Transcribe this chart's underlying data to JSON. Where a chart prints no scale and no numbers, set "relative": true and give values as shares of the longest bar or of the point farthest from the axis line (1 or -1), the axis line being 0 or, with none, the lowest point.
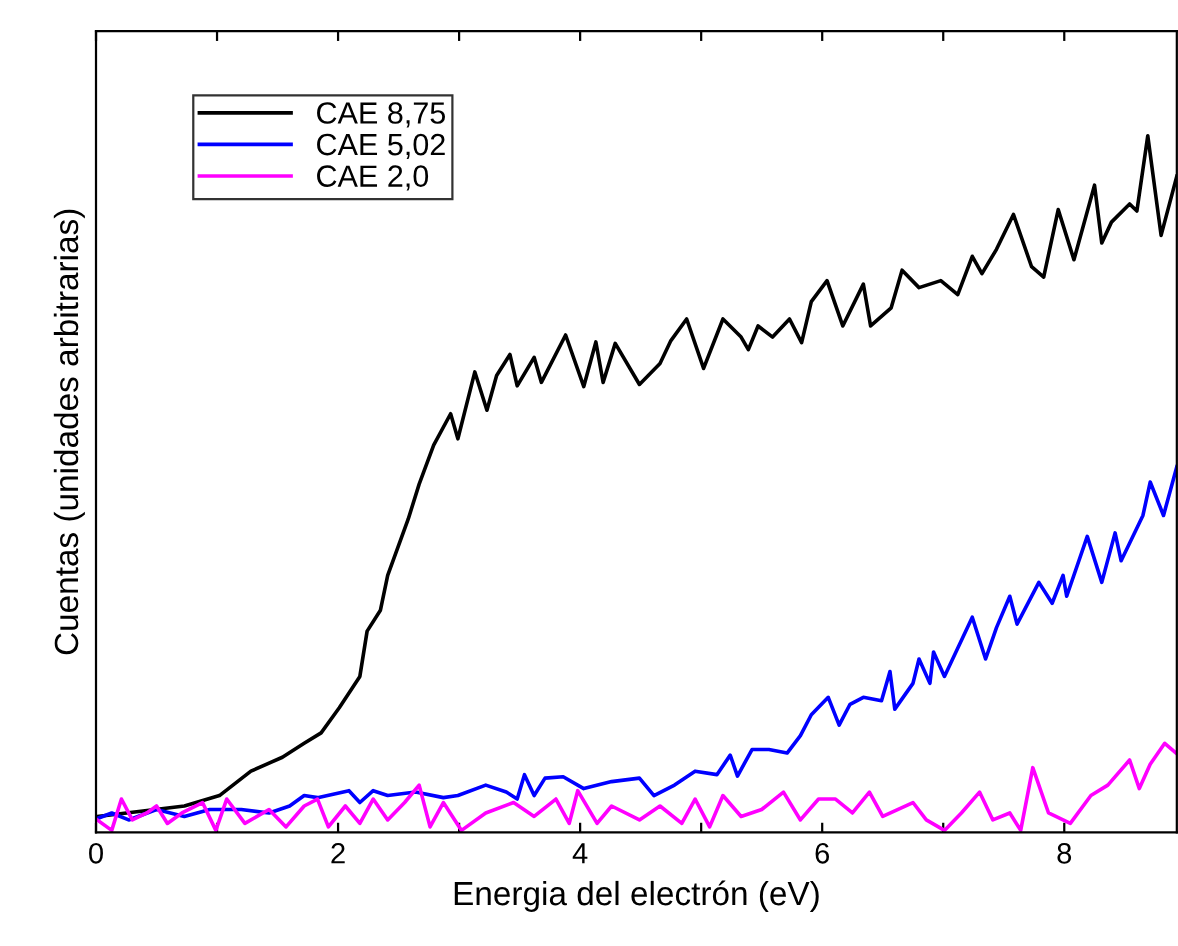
{
  "chart_data": {
    "type": "line",
    "relative": true,
    "xlabel": "Energia del electrón (eV)",
    "ylabel": "Cuentas (unidades arbitrarias)",
    "xlim": [
      0,
      8.93
    ],
    "xticks": [
      0,
      {
        "value": 1,
        "label": null
      },
      2,
      {
        "value": 3,
        "label": null
      },
      4,
      {
        "value": 5,
        "label": null
      },
      6,
      {
        "value": 7,
        "label": null
      },
      8
    ],
    "legend": "top left",
    "grid": false,
    "marker": "none",
    "line_style": "solid",
    "series": [
      {
        "name": "CAE 8,75",
        "color": "#000000",
        "x": [
          0.01,
          0.73,
          1.02,
          1.28,
          1.54,
          1.72,
          1.86,
          2.01,
          2.18,
          2.24,
          2.35,
          2.41,
          2.58,
          2.67,
          2.79,
          2.93,
          2.99,
          3.13,
          3.23,
          3.31,
          3.42,
          3.48,
          3.62,
          3.68,
          3.88,
          4.03,
          4.13,
          4.19,
          4.29,
          4.49,
          4.66,
          4.75,
          4.88,
          5.02,
          5.18,
          5.33,
          5.39,
          5.47,
          5.59,
          5.73,
          5.83,
          5.91,
          6.04,
          6.17,
          6.34,
          6.4,
          6.57,
          6.66,
          6.8,
          6.98,
          7.12,
          7.24,
          7.32,
          7.44,
          7.58,
          7.73,
          7.83,
          7.95,
          8.08,
          8.25,
          8.31,
          8.39,
          8.54,
          8.6,
          8.69,
          8.8,
          8.93
        ],
        "values": [
          0.023,
          0.038,
          0.053,
          0.088,
          0.108,
          0.128,
          0.143,
          0.179,
          0.224,
          0.289,
          0.319,
          0.369,
          0.45,
          0.5,
          0.556,
          0.601,
          0.565,
          0.661,
          0.606,
          0.656,
          0.686,
          0.641,
          0.682,
          0.646,
          0.714,
          0.64,
          0.704,
          0.646,
          0.702,
          0.643,
          0.673,
          0.706,
          0.737,
          0.666,
          0.737,
          0.711,
          0.693,
          0.727,
          0.711,
          0.737,
          0.703,
          0.762,
          0.792,
          0.727,
          0.787,
          0.727,
          0.753,
          0.807,
          0.782,
          0.792,
          0.772,
          0.827,
          0.802,
          0.837,
          0.887,
          0.812,
          0.797,
          0.894,
          0.822,
          0.929,
          0.846,
          0.876,
          0.902,
          0.892,
          1.0,
          0.857,
          0.942
        ]
      },
      {
        "name": "CAE 5,02",
        "color": "#0000ff",
        "x": [
          0.01,
          0.13,
          0.27,
          0.5,
          0.73,
          0.94,
          1.2,
          1.43,
          1.6,
          1.72,
          1.83,
          2.09,
          2.18,
          2.29,
          2.41,
          2.64,
          2.87,
          2.99,
          3.22,
          3.39,
          3.48,
          3.54,
          3.62,
          3.71,
          3.86,
          4.03,
          4.26,
          4.49,
          4.61,
          4.78,
          4.95,
          5.13,
          5.24,
          5.3,
          5.42,
          5.56,
          5.71,
          5.82,
          5.91,
          6.05,
          6.14,
          6.23,
          6.34,
          6.49,
          6.56,
          6.6,
          6.75,
          6.8,
          6.89,
          6.92,
          7.01,
          7.24,
          7.35,
          7.44,
          7.55,
          7.61,
          7.79,
          7.9,
          7.99,
          8.02,
          8.19,
          8.31,
          8.42,
          8.47,
          8.65,
          8.71,
          8.82,
          8.93
        ],
        "values": [
          0.02,
          0.028,
          0.018,
          0.033,
          0.023,
          0.033,
          0.033,
          0.028,
          0.038,
          0.053,
          0.05,
          0.06,
          0.043,
          0.06,
          0.053,
          0.058,
          0.05,
          0.053,
          0.068,
          0.058,
          0.048,
          0.083,
          0.053,
          0.078,
          0.08,
          0.063,
          0.073,
          0.078,
          0.053,
          0.068,
          0.088,
          0.083,
          0.111,
          0.081,
          0.119,
          0.119,
          0.114,
          0.139,
          0.169,
          0.194,
          0.154,
          0.184,
          0.194,
          0.189,
          0.231,
          0.177,
          0.214,
          0.249,
          0.214,
          0.259,
          0.224,
          0.309,
          0.249,
          0.294,
          0.339,
          0.299,
          0.359,
          0.329,
          0.369,
          0.339,
          0.425,
          0.359,
          0.43,
          0.39,
          0.455,
          0.503,
          0.455,
          0.525
        ]
      },
      {
        "name": "CAE 2,0",
        "color": "#ff00ff",
        "x": [
          0.01,
          0.13,
          0.21,
          0.3,
          0.42,
          0.5,
          0.59,
          0.71,
          0.88,
          0.99,
          1.08,
          1.23,
          1.43,
          1.57,
          1.72,
          1.83,
          1.92,
          2.06,
          2.18,
          2.29,
          2.41,
          2.55,
          2.67,
          2.76,
          2.87,
          3.02,
          3.22,
          3.45,
          3.62,
          3.8,
          3.91,
          3.98,
          4.14,
          4.26,
          4.49,
          4.66,
          4.84,
          4.95,
          5.07,
          5.18,
          5.33,
          5.5,
          5.68,
          5.82,
          5.97,
          6.11,
          6.25,
          6.39,
          6.5,
          6.75,
          6.86,
          7.01,
          7.15,
          7.3,
          7.41,
          7.55,
          7.64,
          7.74,
          7.87,
          8.05,
          8.22,
          8.36,
          8.54,
          8.62,
          8.71,
          8.83,
          8.93
        ],
        "values": [
          0.018,
          0.003,
          0.048,
          0.018,
          0.028,
          0.038,
          0.013,
          0.028,
          0.043,
          0.003,
          0.048,
          0.013,
          0.033,
          0.008,
          0.038,
          0.048,
          0.008,
          0.038,
          0.013,
          0.048,
          0.018,
          0.043,
          0.068,
          0.008,
          0.043,
          0.003,
          0.028,
          0.043,
          0.023,
          0.048,
          0.013,
          0.06,
          0.013,
          0.038,
          0.018,
          0.038,
          0.013,
          0.048,
          0.008,
          0.053,
          0.023,
          0.033,
          0.058,
          0.018,
          0.048,
          0.048,
          0.028,
          0.058,
          0.023,
          0.043,
          0.018,
          0.003,
          0.028,
          0.058,
          0.018,
          0.028,
          0.003,
          0.093,
          0.028,
          0.013,
          0.053,
          0.068,
          0.104,
          0.063,
          0.098,
          0.128,
          0.113
        ]
      }
    ]
  }
}
